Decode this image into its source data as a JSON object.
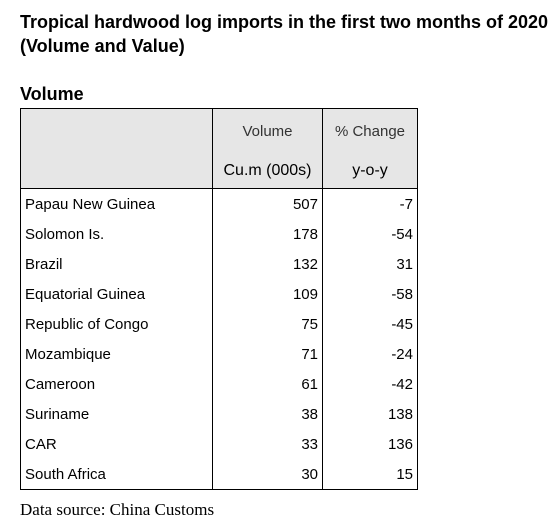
{
  "header": {
    "title": "Tropical hardwood log imports in the first two months of 2020 (Volume and Value)",
    "section": "Volume"
  },
  "table": {
    "columns": [
      [
        "Volume",
        "Cu.m (000s)"
      ],
      [
        "% Change",
        "y-o-y"
      ]
    ],
    "rows": [
      [
        "Papau New Guinea",
        507,
        -7
      ],
      [
        "Solomon Is.",
        178,
        -54
      ],
      [
        "Brazil",
        132,
        31
      ],
      [
        "Equatorial Guinea",
        109,
        -58
      ],
      [
        "Republic of Congo",
        75,
        -45
      ],
      [
        "Mozambique",
        71,
        -24
      ],
      [
        "Cameroon",
        61,
        -42
      ],
      [
        "Suriname",
        38,
        138
      ],
      [
        "CAR",
        33,
        136
      ],
      [
        "South Africa",
        30,
        15
      ]
    ]
  },
  "source": "Data source: China Customs"
}
